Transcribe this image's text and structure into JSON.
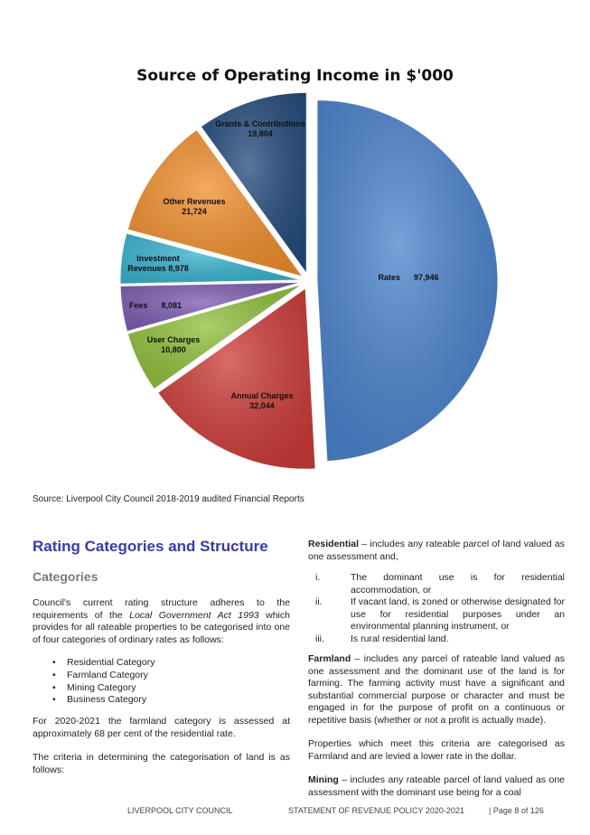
{
  "chart_data": {
    "type": "pie",
    "title": "Source of Operating Income in $'000",
    "slices": [
      {
        "label": "Rates",
        "value": 97946,
        "value_text": "97,946",
        "color": "#4a82cc"
      },
      {
        "label": "Annual Charges",
        "value": 32044,
        "value_text": "32,044",
        "color": "#cc3b38"
      },
      {
        "label": "User Charges",
        "value": 10800,
        "value_text": "10,800",
        "color": "#8fbf3a"
      },
      {
        "label": "Fees",
        "value": 8081,
        "value_text": "8,081",
        "color": "#7c5bb0"
      },
      {
        "label": "Investment Revenues",
        "value": 8978,
        "value_text": "8,978",
        "color": "#38b2cf"
      },
      {
        "label": "Other Revenues",
        "value": 21724,
        "value_text": "21,724",
        "color": "#f08e2c"
      },
      {
        "label": "Grants & Contributions",
        "value": 19804,
        "value_text": "19,804",
        "color": "#234a7c"
      }
    ]
  },
  "source_note": "Source: Liverpool City Council 2018-2019 audited Financial Reports",
  "heading": "Rating Categories and Structure",
  "subheading": "Categories",
  "left": {
    "intro_a": "Council's current rating structure adheres to the requirements of the ",
    "intro_act": "Local Government Act 1993",
    "intro_b": " which provides for all rateable properties to be categorised into one of four categories of ordinary rates as follows:",
    "bullets": [
      "Residential Category",
      "Farmland Category",
      "Mining Category",
      "Business Category"
    ],
    "para2": "For 2020-2021 the farmland category is assessed at approximately 68 per cent of the residential rate.",
    "para3": "The criteria in determining the categorisation of land is as follows:"
  },
  "right": {
    "res_term": "Residential",
    "res_text": " – includes any rateable parcel of land valued as one assessment and,",
    "res_items": [
      {
        "num": "i.",
        "text": "The dominant use is for residential accommodation, or"
      },
      {
        "num": "ii.",
        "text": "If vacant land, is zoned or otherwise designated for use for residential purposes under an environmental planning instrument, or"
      },
      {
        "num": "iii.",
        "text": "Is rural residential land."
      }
    ],
    "farm_term": "Farmland",
    "farm_text": " – includes any parcel of rateable land valued as one assessment and the dominant use of the land is for farming. The farming activity must have a significant and substantial commercial purpose or character and must be engaged in for the purpose of profit on a continuous or repetitive basis (whether or not a profit is actually made).",
    "props": "Properties which meet this criteria are categorised as Farmland and are levied a lower rate in the dollar.",
    "mining_term": "Mining",
    "mining_text": " – includes any rateable parcel of land valued as one assessment with the dominant use being for a coal"
  },
  "footer": {
    "council": "LIVERPOOL CITY COUNCIL",
    "statement": "STATEMENT OF REVENUE POLICY 2020-2021",
    "page": "| Page 8 of 126"
  }
}
